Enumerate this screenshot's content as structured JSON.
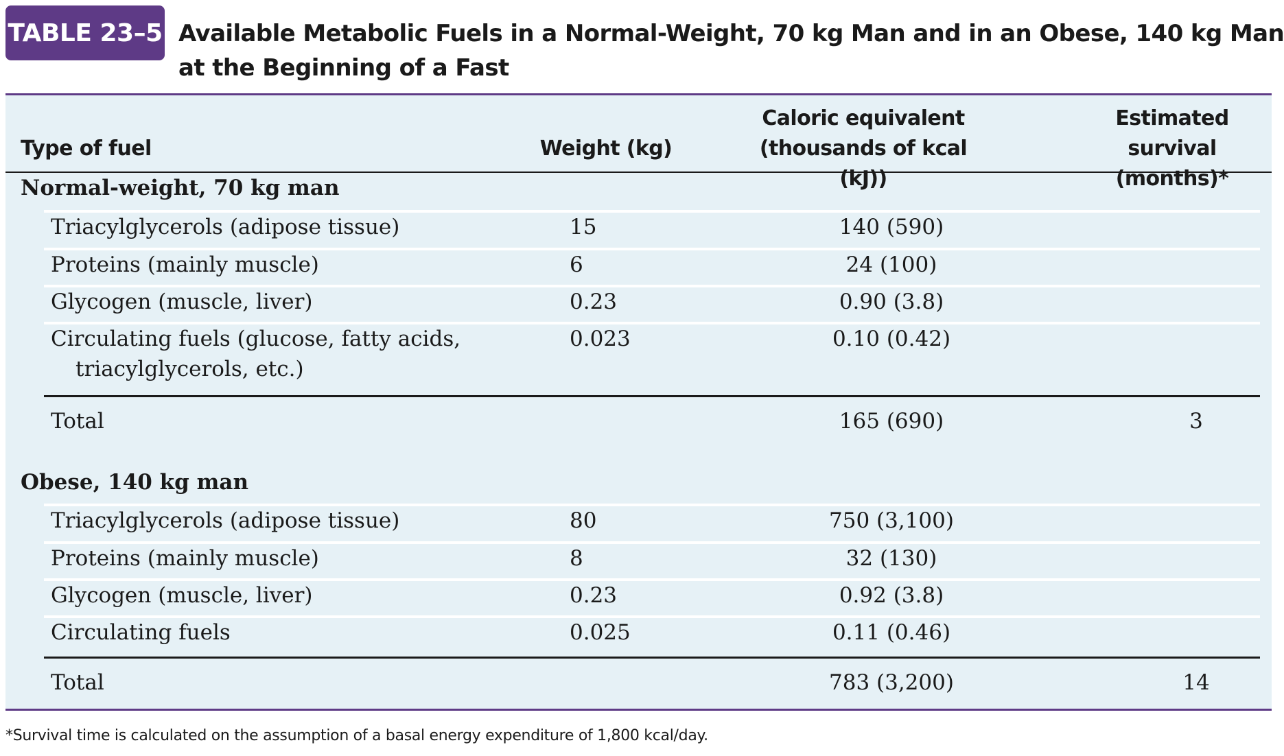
{
  "badge": "TABLE 23–5",
  "title": {
    "line1": "Available Metabolic Fuels in a Normal-Weight, 70 kg Man and in an Obese, 140 kg Man",
    "line2": "at the Beginning of a Fast"
  },
  "columns": {
    "type": "Type of fuel",
    "weight": "Weight (kg)",
    "caloric_line1": "Caloric equivalent",
    "caloric_line2": "(thousands of kcal (kJ))",
    "survival_line1": "Estimated survival",
    "survival_line2": "(months)*"
  },
  "sections": [
    {
      "heading": "Normal-weight, 70 kg man",
      "rows": [
        {
          "fuel": "Triacylglycerols (adipose tissue)",
          "weight": "15",
          "caloric": "140 (590)"
        },
        {
          "fuel": "Proteins (mainly muscle)",
          "weight": "6",
          "caloric": "24 (100)"
        },
        {
          "fuel": "Glycogen (muscle, liver)",
          "weight": "0.23",
          "caloric": "0.90 (3.8)"
        },
        {
          "fuel": "Circulating fuels (glucose, fatty acids,",
          "fuel_cont": "triacylglycerols, etc.)",
          "weight": "0.023",
          "caloric": "0.10 (0.42)"
        }
      ],
      "total": {
        "label": "Total",
        "caloric": "165 (690)",
        "survival": "3"
      }
    },
    {
      "heading": "Obese, 140 kg man",
      "rows": [
        {
          "fuel": "Triacylglycerols (adipose tissue)",
          "weight": "80",
          "caloric": "750 (3,100)"
        },
        {
          "fuel": "Proteins (mainly muscle)",
          "weight": "8",
          "caloric": "32 (130)"
        },
        {
          "fuel": "Glycogen (muscle, liver)",
          "weight": "0.23",
          "caloric": "0.92 (3.8)"
        },
        {
          "fuel": "Circulating fuels",
          "weight": "0.025",
          "caloric": "0.11 (0.46)"
        }
      ],
      "total": {
        "label": "Total",
        "caloric": "783 (3,200)",
        "survival": "14"
      }
    }
  ],
  "footnote": "*Survival time is calculated on the assumption of a basal energy expenditure of 1,800 kcal/day.",
  "colors": {
    "badge": "#5e3a86",
    "panel": "#e6f1f6",
    "rule_accent": "#5e3a86"
  }
}
